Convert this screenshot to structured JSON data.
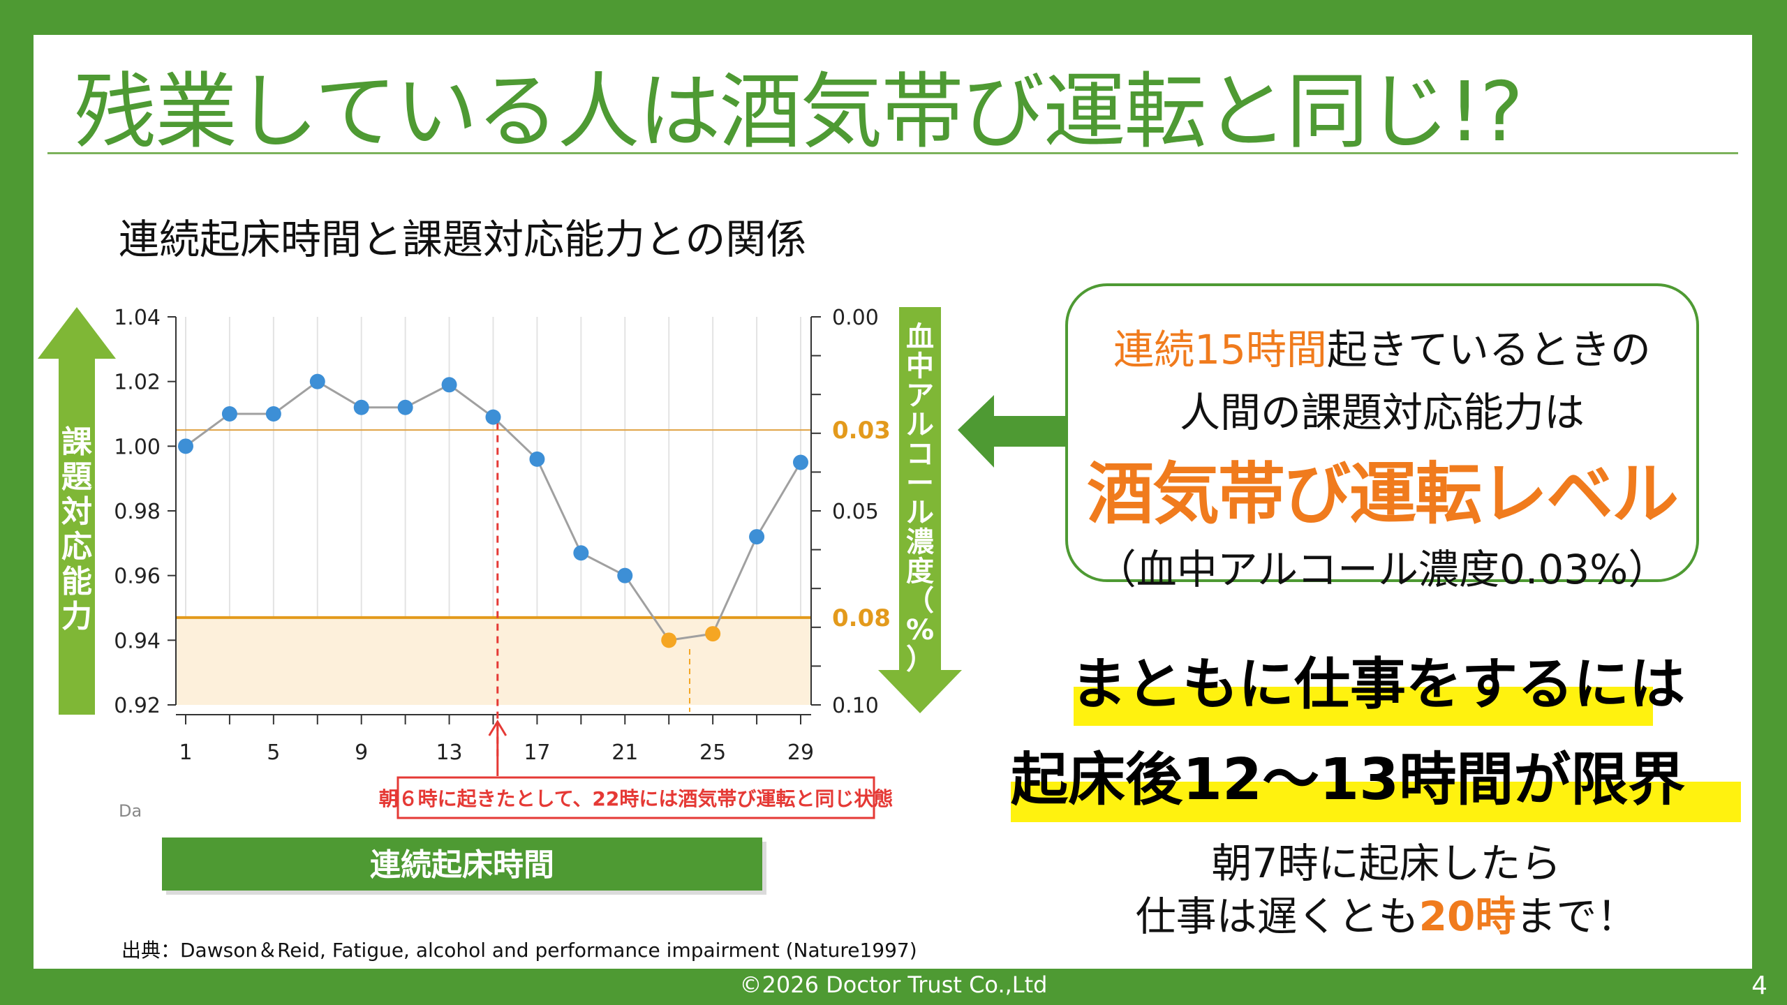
{
  "slide": {
    "title": "残業している人は酒気帯び運転と同じ!?",
    "footer": "©2026  Doctor Trust Co.,Ltd",
    "page_number": "4",
    "source": "出典：Dawson＆Reid, Fatigue, alcohol and performance impairment (Nature1997)"
  },
  "chart_data": {
    "type": "line",
    "title": "連続起床時間と課題対応能力との関係",
    "ylabel": "課題対応能力",
    "y2label": "血中アルコール濃度（%）",
    "xlabel": "連続起床時間",
    "axis_stub": "Da",
    "x_ticks": [
      "1",
      "5",
      "9",
      "13",
      "17",
      "21",
      "25",
      "29"
    ],
    "x_range": [
      1,
      29
    ],
    "ylim": [
      0.92,
      1.04
    ],
    "y_ticks": [
      "0.92",
      "0.94",
      "0.96",
      "0.98",
      "1.00",
      "1.02",
      "1.04"
    ],
    "y2_ticks": [
      "0.00",
      "0.03",
      "0.05",
      "0.08",
      "0.10"
    ],
    "y2_highlight": [
      "0.03",
      "0.08"
    ],
    "series": [
      {
        "x": [
          1,
          3,
          5,
          7,
          9,
          11,
          13,
          15,
          17,
          19,
          21,
          23,
          25,
          27,
          29
        ],
        "y": [
          1.0,
          1.01,
          1.01,
          1.02,
          1.012,
          1.012,
          1.019,
          1.009,
          0.996,
          0.967,
          0.96,
          0.94,
          0.942,
          0.972,
          0.995
        ]
      }
    ],
    "highlight_points": [
      11,
      12
    ],
    "reference_lines": [
      {
        "y": 1.005,
        "label": "0.03",
        "color": "#e0a243"
      },
      {
        "y": 0.947,
        "label": "0.08",
        "color": "#e39a1c"
      }
    ],
    "marker_x": 15.2,
    "annotation": "朝６時に起きたとして、22時には酒気帯び運転と同じ状態",
    "colors": {
      "point": "#3d8fd6",
      "highlight": "#f5a623",
      "line": "#a0a0a0",
      "arrow": "#7fb736",
      "annotation": "#e53935"
    }
  },
  "callout": {
    "line1_highlight": "連続15時間",
    "line1_rest": "起きているときの",
    "line2": "人間の課題対応能力は",
    "line3": "酒気帯び運転レベル",
    "line4": "（血中アルコール濃度0.03%）"
  },
  "conclusion": {
    "line1": "まともに仕事をするには",
    "line2": "起床後12～13時間が限界"
  },
  "advice": {
    "line1": "朝7時に起床したら",
    "line2_pre": "仕事は遅くとも",
    "line2_highlight": "20時",
    "line2_post": "まで！"
  }
}
